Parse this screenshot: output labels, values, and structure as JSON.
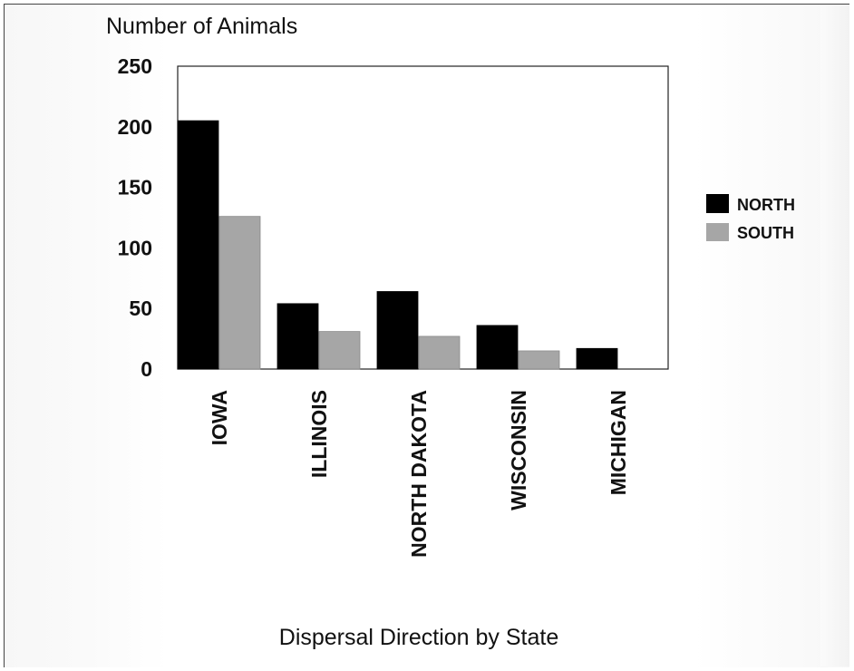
{
  "chart_data": {
    "type": "bar",
    "title": "Number of Animals",
    "xlabel": "Dispersal Direction by State",
    "ylabel": "",
    "ylim": [
      0,
      250
    ],
    "yticks": [
      "0",
      "50",
      "100",
      "150",
      "200",
      "250"
    ],
    "ytick_values": [
      0,
      50,
      100,
      150,
      200,
      250
    ],
    "categories": [
      "IOWA",
      "ILLINOIS",
      "NORTH DAKOTA",
      "WISCONSIN",
      "MICHIGAN"
    ],
    "series": [
      {
        "name": "NORTH",
        "color": "#000000",
        "values": [
          205,
          54,
          64,
          36,
          17
        ]
      },
      {
        "name": "SOUTH",
        "color": "#a6a6a6",
        "values": [
          126,
          31,
          27,
          15,
          0
        ]
      }
    ],
    "legend_position": "right",
    "grid": false
  }
}
